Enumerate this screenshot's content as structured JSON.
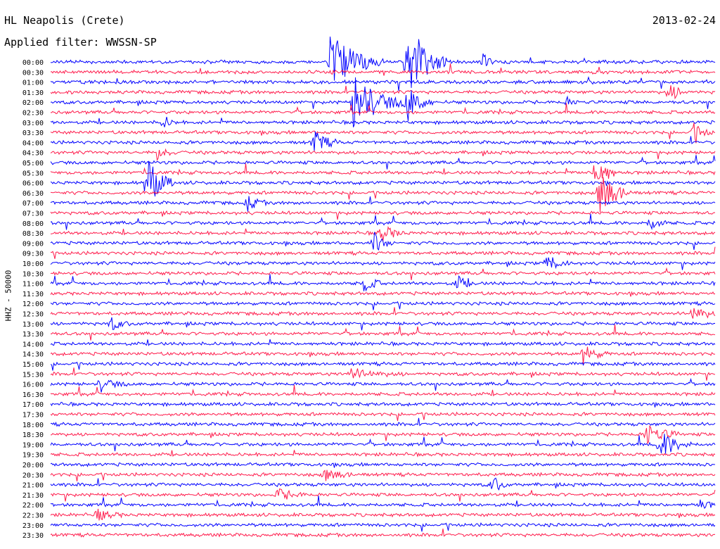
{
  "header": {
    "station": "HL Neapolis (Crete)",
    "filter": "Applied filter: WWSSN-SP",
    "date": "2013-02-24",
    "channel": "HHZ - 50000"
  },
  "colors": {
    "even_rows": "#0000ff",
    "odd_rows": "#ff1a4b",
    "text": "#000000",
    "background": "#ffffff"
  },
  "chart_data": {
    "type": "line",
    "title": "",
    "xlabel": "",
    "ylabel": "HHZ - 50000",
    "rows": [
      "00:00",
      "00:30",
      "01:00",
      "01:30",
      "02:00",
      "02:30",
      "03:00",
      "03:30",
      "04:00",
      "04:30",
      "05:00",
      "05:30",
      "06:00",
      "06:30",
      "07:00",
      "07:30",
      "08:00",
      "08:30",
      "09:00",
      "09:30",
      "10:00",
      "10:30",
      "11:00",
      "11:30",
      "12:00",
      "12:30",
      "13:00",
      "13:30",
      "14:00",
      "14:30",
      "15:00",
      "15:30",
      "16:00",
      "16:30",
      "17:00",
      "17:30",
      "18:00",
      "18:30",
      "19:00",
      "19:30",
      "20:00",
      "20:30",
      "21:00",
      "21:30",
      "22:00",
      "22:30",
      "23:00",
      "23:30"
    ],
    "events": [
      {
        "row": 0,
        "t": 0.42,
        "amp": 45,
        "len": 0.08
      },
      {
        "row": 0,
        "t": 0.535,
        "amp": 60,
        "len": 0.06
      },
      {
        "row": 0,
        "t": 0.65,
        "amp": 12,
        "len": 0.02
      },
      {
        "row": 3,
        "t": 0.93,
        "amp": 14,
        "len": 0.03
      },
      {
        "row": 4,
        "t": 0.455,
        "amp": 40,
        "len": 0.08
      },
      {
        "row": 4,
        "t": 0.535,
        "amp": 30,
        "len": 0.04
      },
      {
        "row": 4,
        "t": 0.775,
        "amp": 8,
        "len": 0.02
      },
      {
        "row": 6,
        "t": 0.17,
        "amp": 10,
        "len": 0.02
      },
      {
        "row": 7,
        "t": 0.965,
        "amp": 14,
        "len": 0.03
      },
      {
        "row": 8,
        "t": 0.395,
        "amp": 18,
        "len": 0.04
      },
      {
        "row": 9,
        "t": 0.16,
        "amp": 10,
        "len": 0.03
      },
      {
        "row": 11,
        "t": 0.82,
        "amp": 40,
        "len": 0.03
      },
      {
        "row": 12,
        "t": 0.145,
        "amp": 40,
        "len": 0.04
      },
      {
        "row": 13,
        "t": 0.825,
        "amp": 35,
        "len": 0.05
      },
      {
        "row": 14,
        "t": 0.295,
        "amp": 12,
        "len": 0.03
      },
      {
        "row": 16,
        "t": 0.9,
        "amp": 12,
        "len": 0.03
      },
      {
        "row": 17,
        "t": 0.495,
        "amp": 14,
        "len": 0.04
      },
      {
        "row": 18,
        "t": 0.485,
        "amp": 16,
        "len": 0.03
      },
      {
        "row": 20,
        "t": 0.745,
        "amp": 12,
        "len": 0.04
      },
      {
        "row": 22,
        "t": 0.47,
        "amp": 14,
        "len": 0.03
      },
      {
        "row": 22,
        "t": 0.61,
        "amp": 12,
        "len": 0.03
      },
      {
        "row": 25,
        "t": 0.965,
        "amp": 14,
        "len": 0.04
      },
      {
        "row": 26,
        "t": 0.09,
        "amp": 10,
        "len": 0.03
      },
      {
        "row": 29,
        "t": 0.8,
        "amp": 14,
        "len": 0.04
      },
      {
        "row": 31,
        "t": 0.45,
        "amp": 8,
        "len": 0.08
      },
      {
        "row": 32,
        "t": 0.075,
        "amp": 10,
        "len": 0.04
      },
      {
        "row": 37,
        "t": 0.895,
        "amp": 18,
        "len": 0.05
      },
      {
        "row": 38,
        "t": 0.915,
        "amp": 22,
        "len": 0.05
      },
      {
        "row": 41,
        "t": 0.41,
        "amp": 8,
        "len": 0.06
      },
      {
        "row": 42,
        "t": 0.665,
        "amp": 16,
        "len": 0.02
      },
      {
        "row": 43,
        "t": 0.34,
        "amp": 9,
        "len": 0.05
      },
      {
        "row": 44,
        "t": 0.975,
        "amp": 6,
        "len": 0.04
      },
      {
        "row": 45,
        "t": 0.07,
        "amp": 9,
        "len": 0.04
      }
    ]
  }
}
